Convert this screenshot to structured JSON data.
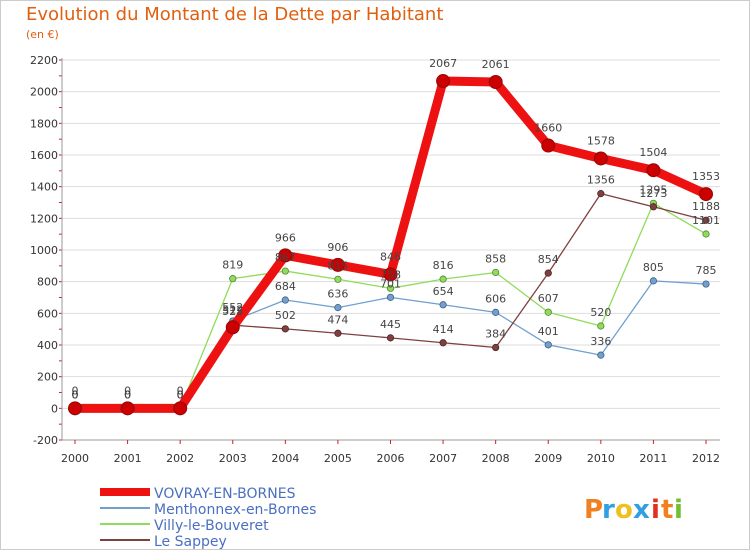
{
  "chart_data": {
    "type": "line",
    "title": "Evolution du Montant de la Dette par Habitant",
    "subtitle": "(en €)",
    "xlabel": "",
    "ylabel": "",
    "x": [
      2000,
      2001,
      2002,
      2003,
      2004,
      2005,
      2006,
      2007,
      2008,
      2009,
      2010,
      2011,
      2012
    ],
    "ylim": [
      -200,
      2200
    ],
    "yticks": [
      -200,
      0,
      200,
      400,
      600,
      800,
      1000,
      1200,
      1400,
      1600,
      1800,
      2000,
      2200
    ],
    "grid": "horizontal",
    "legend_position": "bottom",
    "series": [
      {
        "name": "VOVRAY-EN-BORNES",
        "color": "#ee1111",
        "values": [
          0,
          0,
          0,
          512,
          966,
          906,
          846,
          2067,
          2061,
          1660,
          1578,
          1504,
          1353
        ]
      },
      {
        "name": "Menthonnex-en-Bornes",
        "color": "#6fa0d0",
        "values": [
          0,
          0,
          0,
          552,
          684,
          636,
          701,
          654,
          606,
          401,
          336,
          805,
          785
        ]
      },
      {
        "name": "Villy-le-Bouveret",
        "color": "#8fdc5a",
        "values": [
          0,
          0,
          0,
          819,
          867,
          815,
          758,
          816,
          858,
          607,
          520,
          1295,
          1101
        ]
      },
      {
        "name": "Le Sappey",
        "color": "#804040",
        "values": [
          0,
          0,
          0,
          525,
          502,
          474,
          445,
          414,
          384,
          854,
          1356,
          1273,
          1188
        ]
      }
    ]
  },
  "brand": {
    "text": "Proxiti",
    "colors": [
      "#f08020",
      "#30a0e0",
      "#f0c020",
      "#30a0e0",
      "#e03020",
      "#f08020",
      "#70c030"
    ]
  }
}
